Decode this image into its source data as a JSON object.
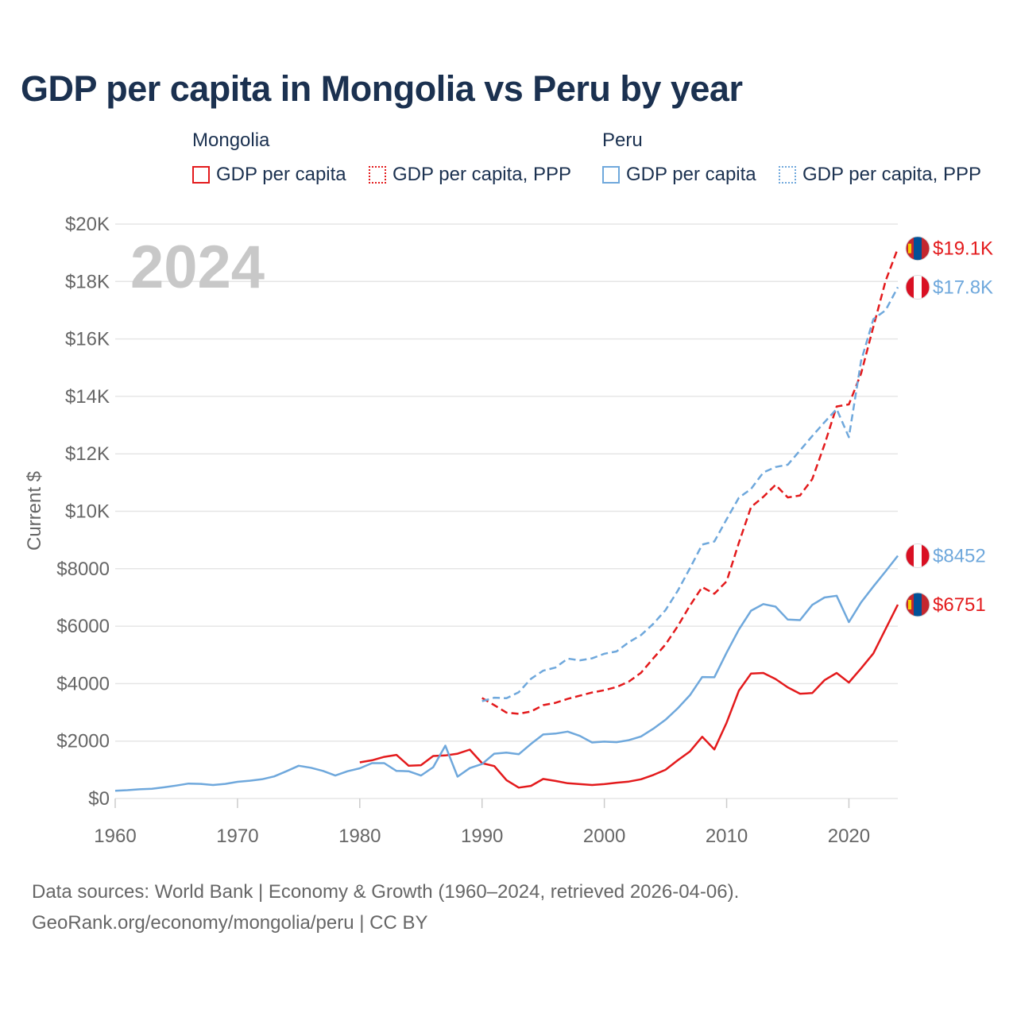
{
  "title": "GDP per capita in Mongolia vs Peru by year",
  "legend": {
    "groups": [
      {
        "name": "Mongolia",
        "items": [
          "GDP per capita",
          "GDP per capita, PPP"
        ]
      },
      {
        "name": "Peru",
        "items": [
          "GDP per capita",
          "GDP per capita, PPP"
        ]
      }
    ]
  },
  "footer": {
    "line1": "Data sources: World Bank | Economy & Growth (1960–2024, retrieved 2026-04-06).",
    "line2": "GeoRank.org/economy/mongolia/peru | CC BY"
  },
  "colors": {
    "mongolia": "#e31a1c",
    "peru": "#6fa8dc",
    "grid": "#e6e6e6",
    "text": "#666666"
  },
  "chart_data": {
    "type": "line",
    "title": "GDP per capita in Mongolia vs Peru by year",
    "year_label": "2024",
    "ylabel": "Current $",
    "xlim": [
      1960,
      2024
    ],
    "ylim": [
      0,
      20000
    ],
    "x_ticks": [
      1960,
      1970,
      1980,
      1990,
      2000,
      2010,
      2020
    ],
    "x_tick_labels": [
      "1960",
      "1970",
      "1980",
      "1990",
      "2000",
      "2010",
      "2020"
    ],
    "y_ticks": [
      0,
      2000,
      4000,
      6000,
      8000,
      10000,
      12000,
      14000,
      16000,
      18000,
      20000
    ],
    "y_tick_labels": [
      "$0",
      "$2000",
      "$4000",
      "$6000",
      "$8000",
      "$10K",
      "$12K",
      "$14K",
      "$16K",
      "$18K",
      "$20K"
    ],
    "series": [
      {
        "name": "Mongolia GDP per capita",
        "country": "Mongolia",
        "style": "solid",
        "end_label": "$6751",
        "points": [
          [
            1980,
            1260
          ],
          [
            1981,
            1330
          ],
          [
            1982,
            1450
          ],
          [
            1983,
            1520
          ],
          [
            1984,
            1140
          ],
          [
            1985,
            1160
          ],
          [
            1986,
            1480
          ],
          [
            1987,
            1500
          ],
          [
            1988,
            1560
          ],
          [
            1989,
            1700
          ],
          [
            1990,
            1230
          ],
          [
            1991,
            1130
          ],
          [
            1992,
            640
          ],
          [
            1993,
            380
          ],
          [
            1994,
            440
          ],
          [
            1995,
            680
          ],
          [
            1996,
            610
          ],
          [
            1997,
            530
          ],
          [
            1998,
            500
          ],
          [
            1999,
            470
          ],
          [
            2000,
            500
          ],
          [
            2001,
            550
          ],
          [
            2002,
            590
          ],
          [
            2003,
            670
          ],
          [
            2004,
            820
          ],
          [
            2005,
            1000
          ],
          [
            2006,
            1330
          ],
          [
            2007,
            1640
          ],
          [
            2008,
            2150
          ],
          [
            2009,
            1710
          ],
          [
            2010,
            2640
          ],
          [
            2011,
            3750
          ],
          [
            2012,
            4350
          ],
          [
            2013,
            4370
          ],
          [
            2014,
            4160
          ],
          [
            2015,
            3870
          ],
          [
            2016,
            3650
          ],
          [
            2017,
            3670
          ],
          [
            2018,
            4120
          ],
          [
            2019,
            4370
          ],
          [
            2020,
            4040
          ],
          [
            2021,
            4530
          ],
          [
            2022,
            5050
          ],
          [
            2023,
            5900
          ],
          [
            2024,
            6751
          ]
        ]
      },
      {
        "name": "Mongolia GDP per capita, PPP",
        "country": "Mongolia",
        "style": "dashed",
        "end_label": "$19.1K",
        "points": [
          [
            1990,
            3500
          ],
          [
            1991,
            3250
          ],
          [
            1992,
            2990
          ],
          [
            1993,
            2950
          ],
          [
            1994,
            3030
          ],
          [
            1995,
            3250
          ],
          [
            1996,
            3330
          ],
          [
            1997,
            3470
          ],
          [
            1998,
            3580
          ],
          [
            1999,
            3690
          ],
          [
            2000,
            3770
          ],
          [
            2001,
            3880
          ],
          [
            2002,
            4070
          ],
          [
            2003,
            4380
          ],
          [
            2004,
            4880
          ],
          [
            2005,
            5360
          ],
          [
            2006,
            6000
          ],
          [
            2007,
            6720
          ],
          [
            2008,
            7360
          ],
          [
            2009,
            7130
          ],
          [
            2010,
            7560
          ],
          [
            2011,
            8900
          ],
          [
            2012,
            10150
          ],
          [
            2013,
            10500
          ],
          [
            2014,
            10920
          ],
          [
            2015,
            10480
          ],
          [
            2016,
            10550
          ],
          [
            2017,
            11120
          ],
          [
            2018,
            12320
          ],
          [
            2019,
            13650
          ],
          [
            2020,
            13720
          ],
          [
            2021,
            14800
          ],
          [
            2022,
            16420
          ],
          [
            2023,
            18020
          ],
          [
            2024,
            19150
          ]
        ]
      },
      {
        "name": "Peru GDP per capita",
        "country": "Peru",
        "style": "solid",
        "end_label": "$8452",
        "points": [
          [
            1960,
            270
          ],
          [
            1961,
            290
          ],
          [
            1962,
            320
          ],
          [
            1963,
            340
          ],
          [
            1964,
            390
          ],
          [
            1965,
            450
          ],
          [
            1966,
            520
          ],
          [
            1967,
            510
          ],
          [
            1968,
            470
          ],
          [
            1969,
            510
          ],
          [
            1970,
            580
          ],
          [
            1971,
            620
          ],
          [
            1972,
            670
          ],
          [
            1973,
            770
          ],
          [
            1974,
            950
          ],
          [
            1975,
            1140
          ],
          [
            1976,
            1070
          ],
          [
            1977,
            960
          ],
          [
            1978,
            800
          ],
          [
            1979,
            950
          ],
          [
            1980,
            1050
          ],
          [
            1981,
            1230
          ],
          [
            1982,
            1230
          ],
          [
            1983,
            960
          ],
          [
            1984,
            950
          ],
          [
            1985,
            800
          ],
          [
            1986,
            1090
          ],
          [
            1987,
            1840
          ],
          [
            1988,
            760
          ],
          [
            1989,
            1060
          ],
          [
            1990,
            1200
          ],
          [
            1991,
            1560
          ],
          [
            1992,
            1600
          ],
          [
            1993,
            1540
          ],
          [
            1994,
            1900
          ],
          [
            1995,
            2230
          ],
          [
            1996,
            2260
          ],
          [
            1997,
            2330
          ],
          [
            1998,
            2180
          ],
          [
            1999,
            1950
          ],
          [
            2000,
            1980
          ],
          [
            2001,
            1960
          ],
          [
            2002,
            2030
          ],
          [
            2003,
            2160
          ],
          [
            2004,
            2430
          ],
          [
            2005,
            2740
          ],
          [
            2006,
            3140
          ],
          [
            2007,
            3600
          ],
          [
            2008,
            4230
          ],
          [
            2009,
            4220
          ],
          [
            2010,
            5080
          ],
          [
            2011,
            5880
          ],
          [
            2012,
            6540
          ],
          [
            2013,
            6770
          ],
          [
            2014,
            6680
          ],
          [
            2015,
            6230
          ],
          [
            2016,
            6210
          ],
          [
            2017,
            6740
          ],
          [
            2018,
            7000
          ],
          [
            2019,
            7060
          ],
          [
            2020,
            6140
          ],
          [
            2021,
            6830
          ],
          [
            2022,
            7380
          ],
          [
            2023,
            7910
          ],
          [
            2024,
            8452
          ]
        ]
      },
      {
        "name": "Peru GDP per capita, PPP",
        "country": "Peru",
        "style": "dashed",
        "end_label": "$17.8K",
        "points": [
          [
            1990,
            3390
          ],
          [
            1991,
            3510
          ],
          [
            1992,
            3490
          ],
          [
            1993,
            3700
          ],
          [
            1994,
            4170
          ],
          [
            1995,
            4450
          ],
          [
            1996,
            4560
          ],
          [
            1997,
            4870
          ],
          [
            1998,
            4810
          ],
          [
            1999,
            4880
          ],
          [
            2000,
            5040
          ],
          [
            2001,
            5120
          ],
          [
            2002,
            5440
          ],
          [
            2003,
            5690
          ],
          [
            2004,
            6080
          ],
          [
            2005,
            6560
          ],
          [
            2006,
            7230
          ],
          [
            2007,
            8020
          ],
          [
            2008,
            8840
          ],
          [
            2009,
            8950
          ],
          [
            2010,
            9720
          ],
          [
            2011,
            10470
          ],
          [
            2012,
            10780
          ],
          [
            2013,
            11350
          ],
          [
            2014,
            11540
          ],
          [
            2015,
            11620
          ],
          [
            2016,
            12120
          ],
          [
            2017,
            12620
          ],
          [
            2018,
            13100
          ],
          [
            2019,
            13560
          ],
          [
            2020,
            12580
          ],
          [
            2021,
            15240
          ],
          [
            2022,
            16690
          ],
          [
            2023,
            17000
          ],
          [
            2024,
            17800
          ]
        ]
      }
    ]
  }
}
